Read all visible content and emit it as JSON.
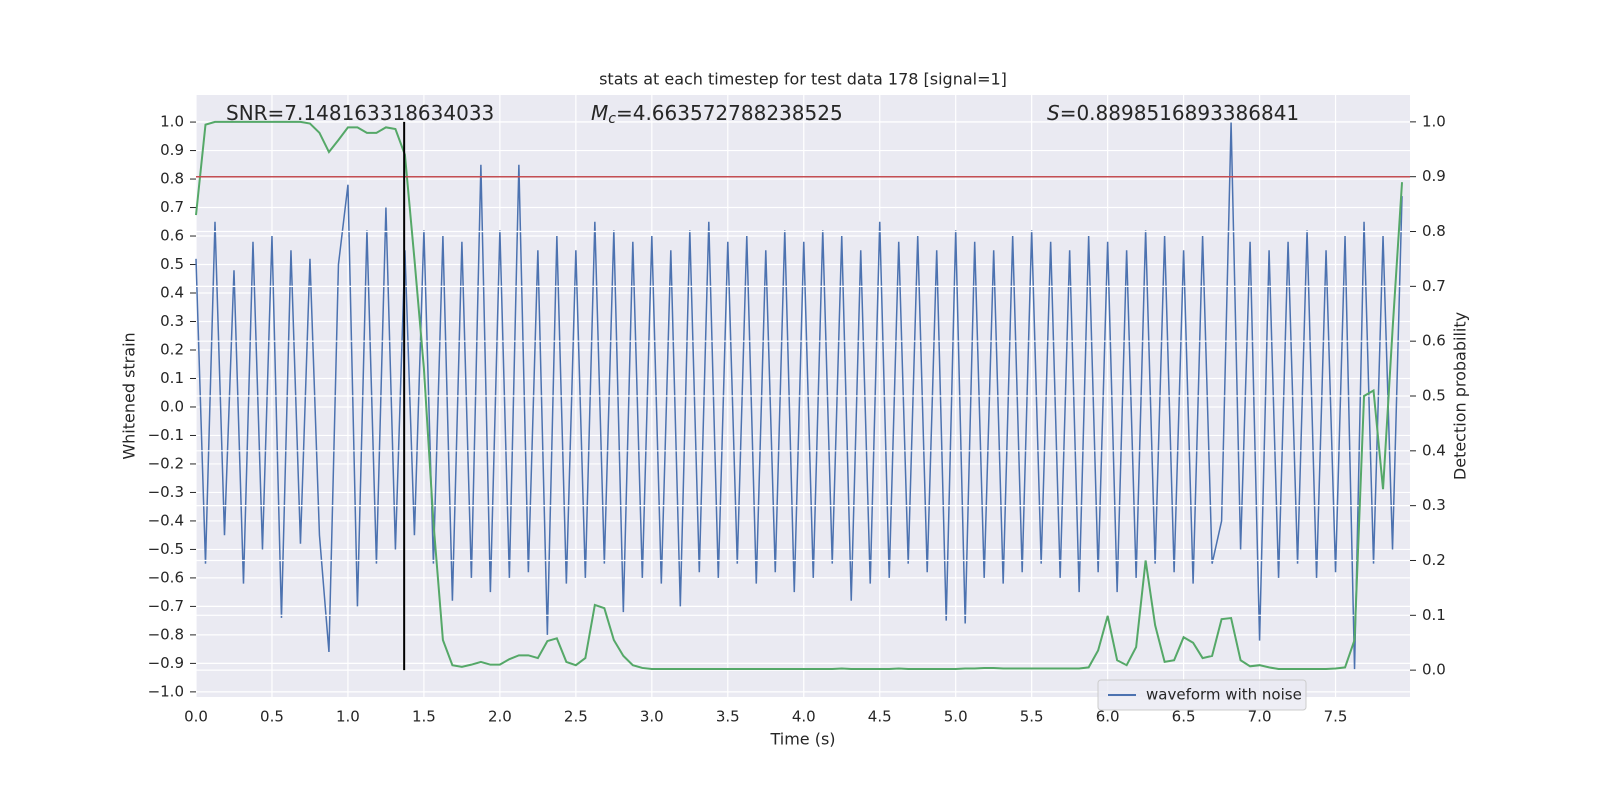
{
  "chart_data": {
    "type": "line",
    "title": "stats at each timestep for test data 178 [signal=1]",
    "xlabel": "Time (s)",
    "ylabel": "Whitened strain",
    "y2label": "Detection probability",
    "x": [
      0,
      0.0625,
      0.125,
      0.1875,
      0.25,
      0.3125,
      0.375,
      0.4375,
      0.5,
      0.5625,
      0.625,
      0.6875,
      0.75,
      0.8125,
      0.875,
      0.9375,
      1,
      1.0625,
      1.125,
      1.1875,
      1.25,
      1.3125,
      1.375,
      1.4375,
      1.5,
      1.5625,
      1.625,
      1.6875,
      1.75,
      1.8125,
      1.875,
      1.9375,
      2,
      2.0625,
      2.125,
      2.1875,
      2.25,
      2.3125,
      2.375,
      2.4375,
      2.5,
      2.5625,
      2.625,
      2.6875,
      2.75,
      2.8125,
      2.875,
      2.9375,
      3,
      3.0625,
      3.125,
      3.1875,
      3.25,
      3.3125,
      3.375,
      3.4375,
      3.5,
      3.5625,
      3.625,
      3.6875,
      3.75,
      3.8125,
      3.875,
      3.9375,
      4,
      4.0625,
      4.125,
      4.1875,
      4.25,
      4.3125,
      4.375,
      4.4375,
      4.5,
      4.5625,
      4.625,
      4.6875,
      4.75,
      4.8125,
      4.875,
      4.9375,
      5,
      5.0625,
      5.125,
      5.1875,
      5.25,
      5.3125,
      5.375,
      5.4375,
      5.5,
      5.5625,
      5.625,
      5.6875,
      5.75,
      5.8125,
      5.875,
      5.9375,
      6,
      6.0625,
      6.125,
      6.1875,
      6.25,
      6.3125,
      6.375,
      6.4375,
      6.5,
      6.5625,
      6.625,
      6.6875,
      6.75,
      6.8125,
      6.875,
      6.9375,
      7,
      7.0625,
      7.125,
      7.1875,
      7.25,
      7.3125,
      7.375,
      7.4375,
      7.5,
      7.5625,
      7.625,
      7.6875,
      7.75,
      7.8125,
      7.875,
      7.9375
    ],
    "series": [
      {
        "name": "waveform with noise",
        "color": "#4c72b0",
        "values": [
          0.52,
          -0.55,
          0.65,
          -0.45,
          0.48,
          -0.62,
          0.58,
          -0.5,
          0.6,
          -0.74,
          0.55,
          -0.48,
          0.52,
          -0.45,
          -0.86,
          0.5,
          0.78,
          -0.7,
          0.62,
          -0.55,
          0.7,
          -0.5,
          0.55,
          -0.45,
          0.62,
          -0.55,
          0.6,
          -0.68,
          0.58,
          -0.6,
          0.85,
          -0.65,
          0.62,
          -0.6,
          0.85,
          -0.58,
          0.55,
          -0.8,
          0.6,
          -0.62,
          0.55,
          -0.6,
          0.65,
          -0.55,
          0.62,
          -0.72,
          0.58,
          -0.6,
          0.6,
          -0.62,
          0.55,
          -0.7,
          0.62,
          -0.58,
          0.65,
          -0.6,
          0.58,
          -0.55,
          0.6,
          -0.62,
          0.55,
          -0.58,
          0.62,
          -0.65,
          0.58,
          -0.6,
          0.62,
          -0.55,
          0.6,
          -0.68,
          0.55,
          -0.62,
          0.65,
          -0.6,
          0.58,
          -0.55,
          0.6,
          -0.58,
          0.55,
          -0.75,
          0.62,
          -0.76,
          0.58,
          -0.6,
          0.55,
          -0.62,
          0.6,
          -0.58,
          0.62,
          -0.55,
          0.58,
          -0.6,
          0.55,
          -0.65,
          0.6,
          -0.58,
          0.58,
          -0.65,
          0.55,
          -0.6,
          0.62,
          -0.55,
          0.6,
          -0.58,
          0.55,
          -0.62,
          0.6,
          -0.55,
          -0.4,
          1.0,
          -0.5,
          0.58,
          -0.82,
          0.55,
          -0.6,
          0.58,
          -0.55,
          0.62,
          -0.6,
          0.55,
          -0.58,
          0.6,
          -0.92,
          0.65,
          -0.55,
          0.6,
          -0.5,
          0.74
        ]
      },
      {
        "color": "#55a868",
        "axis": "y2",
        "values": [
          0.83,
          0.995,
          1.0,
          1.0,
          1.0,
          1.0,
          1.0,
          1.0,
          1.0,
          1.0,
          1.0,
          1.0,
          0.997,
          0.98,
          0.945,
          0.967,
          0.99,
          0.99,
          0.98,
          0.98,
          0.99,
          0.987,
          0.94,
          0.75,
          0.55,
          0.27,
          0.055,
          0.009,
          0.006,
          0.01,
          0.015,
          0.01,
          0.01,
          0.02,
          0.027,
          0.027,
          0.022,
          0.053,
          0.058,
          0.015,
          0.009,
          0.022,
          0.119,
          0.113,
          0.055,
          0.026,
          0.009,
          0.004,
          0.002,
          0.002,
          0.002,
          0.002,
          0.002,
          0.002,
          0.002,
          0.002,
          0.002,
          0.002,
          0.002,
          0.002,
          0.002,
          0.002,
          0.002,
          0.002,
          0.002,
          0.002,
          0.002,
          0.002,
          0.003,
          0.002,
          0.002,
          0.002,
          0.002,
          0.002,
          0.003,
          0.002,
          0.002,
          0.002,
          0.002,
          0.002,
          0.002,
          0.003,
          0.003,
          0.004,
          0.004,
          0.003,
          0.003,
          0.003,
          0.003,
          0.003,
          0.003,
          0.003,
          0.003,
          0.003,
          0.005,
          0.036,
          0.099,
          0.018,
          0.009,
          0.042,
          0.2,
          0.082,
          0.015,
          0.018,
          0.06,
          0.05,
          0.022,
          0.026,
          0.093,
          0.095,
          0.018,
          0.007,
          0.009,
          0.005,
          0.002,
          0.002,
          0.002,
          0.002,
          0.002,
          0.002,
          0.003,
          0.005,
          0.055,
          0.5,
          0.51,
          0.33,
          0.62,
          0.89
        ]
      }
    ],
    "threshold": {
      "value": 0.9,
      "axis": "y2",
      "color": "#c44e52"
    },
    "marker": {
      "x": 1.37,
      "y2range": [
        0,
        1
      ],
      "color": "#000000"
    },
    "annotations": [
      {
        "text": "SNR=7.148163318634033"
      },
      {
        "symbol": "M",
        "subscript": "c",
        "text": "=4.663572788238525"
      },
      {
        "symbol": "S",
        "text": "=0.8898516893386841"
      }
    ],
    "xlim": [
      0,
      7.99
    ],
    "ylim": [
      -1.018,
      1.095
    ],
    "y2lim": [
      -0.049,
      1.049
    ],
    "xticks": [
      {
        "value": 0,
        "label": "0.0"
      },
      {
        "value": 0.5,
        "label": "0.5"
      },
      {
        "value": 1,
        "label": "1.0"
      },
      {
        "value": 1.5,
        "label": "1.5"
      },
      {
        "value": 2,
        "label": "2.0"
      },
      {
        "value": 2.5,
        "label": "2.5"
      },
      {
        "value": 3,
        "label": "3.0"
      },
      {
        "value": 3.5,
        "label": "3.5"
      },
      {
        "value": 4,
        "label": "4.0"
      },
      {
        "value": 4.5,
        "label": "4.5"
      },
      {
        "value": 5,
        "label": "5.0"
      },
      {
        "value": 5.5,
        "label": "5.5"
      },
      {
        "value": 6,
        "label": "6.0"
      },
      {
        "value": 6.5,
        "label": "6.5"
      },
      {
        "value": 7,
        "label": "7.0"
      },
      {
        "value": 7.5,
        "label": "7.5"
      }
    ],
    "yticks": [
      {
        "value": -1,
        "label": "−1.0"
      },
      {
        "value": -0.9,
        "label": "−0.9"
      },
      {
        "value": -0.8,
        "label": "−0.8"
      },
      {
        "value": -0.7,
        "label": "−0.7"
      },
      {
        "value": -0.6,
        "label": "−0.6"
      },
      {
        "value": -0.5,
        "label": "−0.5"
      },
      {
        "value": -0.4,
        "label": "−0.4"
      },
      {
        "value": -0.3,
        "label": "−0.3"
      },
      {
        "value": -0.2,
        "label": "−0.2"
      },
      {
        "value": -0.1,
        "label": "−0.1"
      },
      {
        "value": 0,
        "label": "0.0"
      },
      {
        "value": 0.1,
        "label": "0.1"
      },
      {
        "value": 0.2,
        "label": "0.2"
      },
      {
        "value": 0.3,
        "label": "0.3"
      },
      {
        "value": 0.4,
        "label": "0.4"
      },
      {
        "value": 0.5,
        "label": "0.5"
      },
      {
        "value": 0.6,
        "label": "0.6"
      },
      {
        "value": 0.7,
        "label": "0.7"
      },
      {
        "value": 0.8,
        "label": "0.8"
      },
      {
        "value": 0.9,
        "label": "0.9"
      },
      {
        "value": 1,
        "label": "1.0"
      }
    ],
    "y2ticks": [
      {
        "value": 0,
        "label": "0.0"
      },
      {
        "value": 0.1,
        "label": "0.1"
      },
      {
        "value": 0.2,
        "label": "0.2"
      },
      {
        "value": 0.3,
        "label": "0.3"
      },
      {
        "value": 0.4,
        "label": "0.4"
      },
      {
        "value": 0.5,
        "label": "0.5"
      },
      {
        "value": 0.6,
        "label": "0.6"
      },
      {
        "value": 0.7,
        "label": "0.7"
      },
      {
        "value": 0.8,
        "label": "0.8"
      },
      {
        "value": 0.9,
        "label": "0.9"
      },
      {
        "value": 1,
        "label": "1.0"
      }
    ],
    "grid": true,
    "legend": "lower right"
  }
}
